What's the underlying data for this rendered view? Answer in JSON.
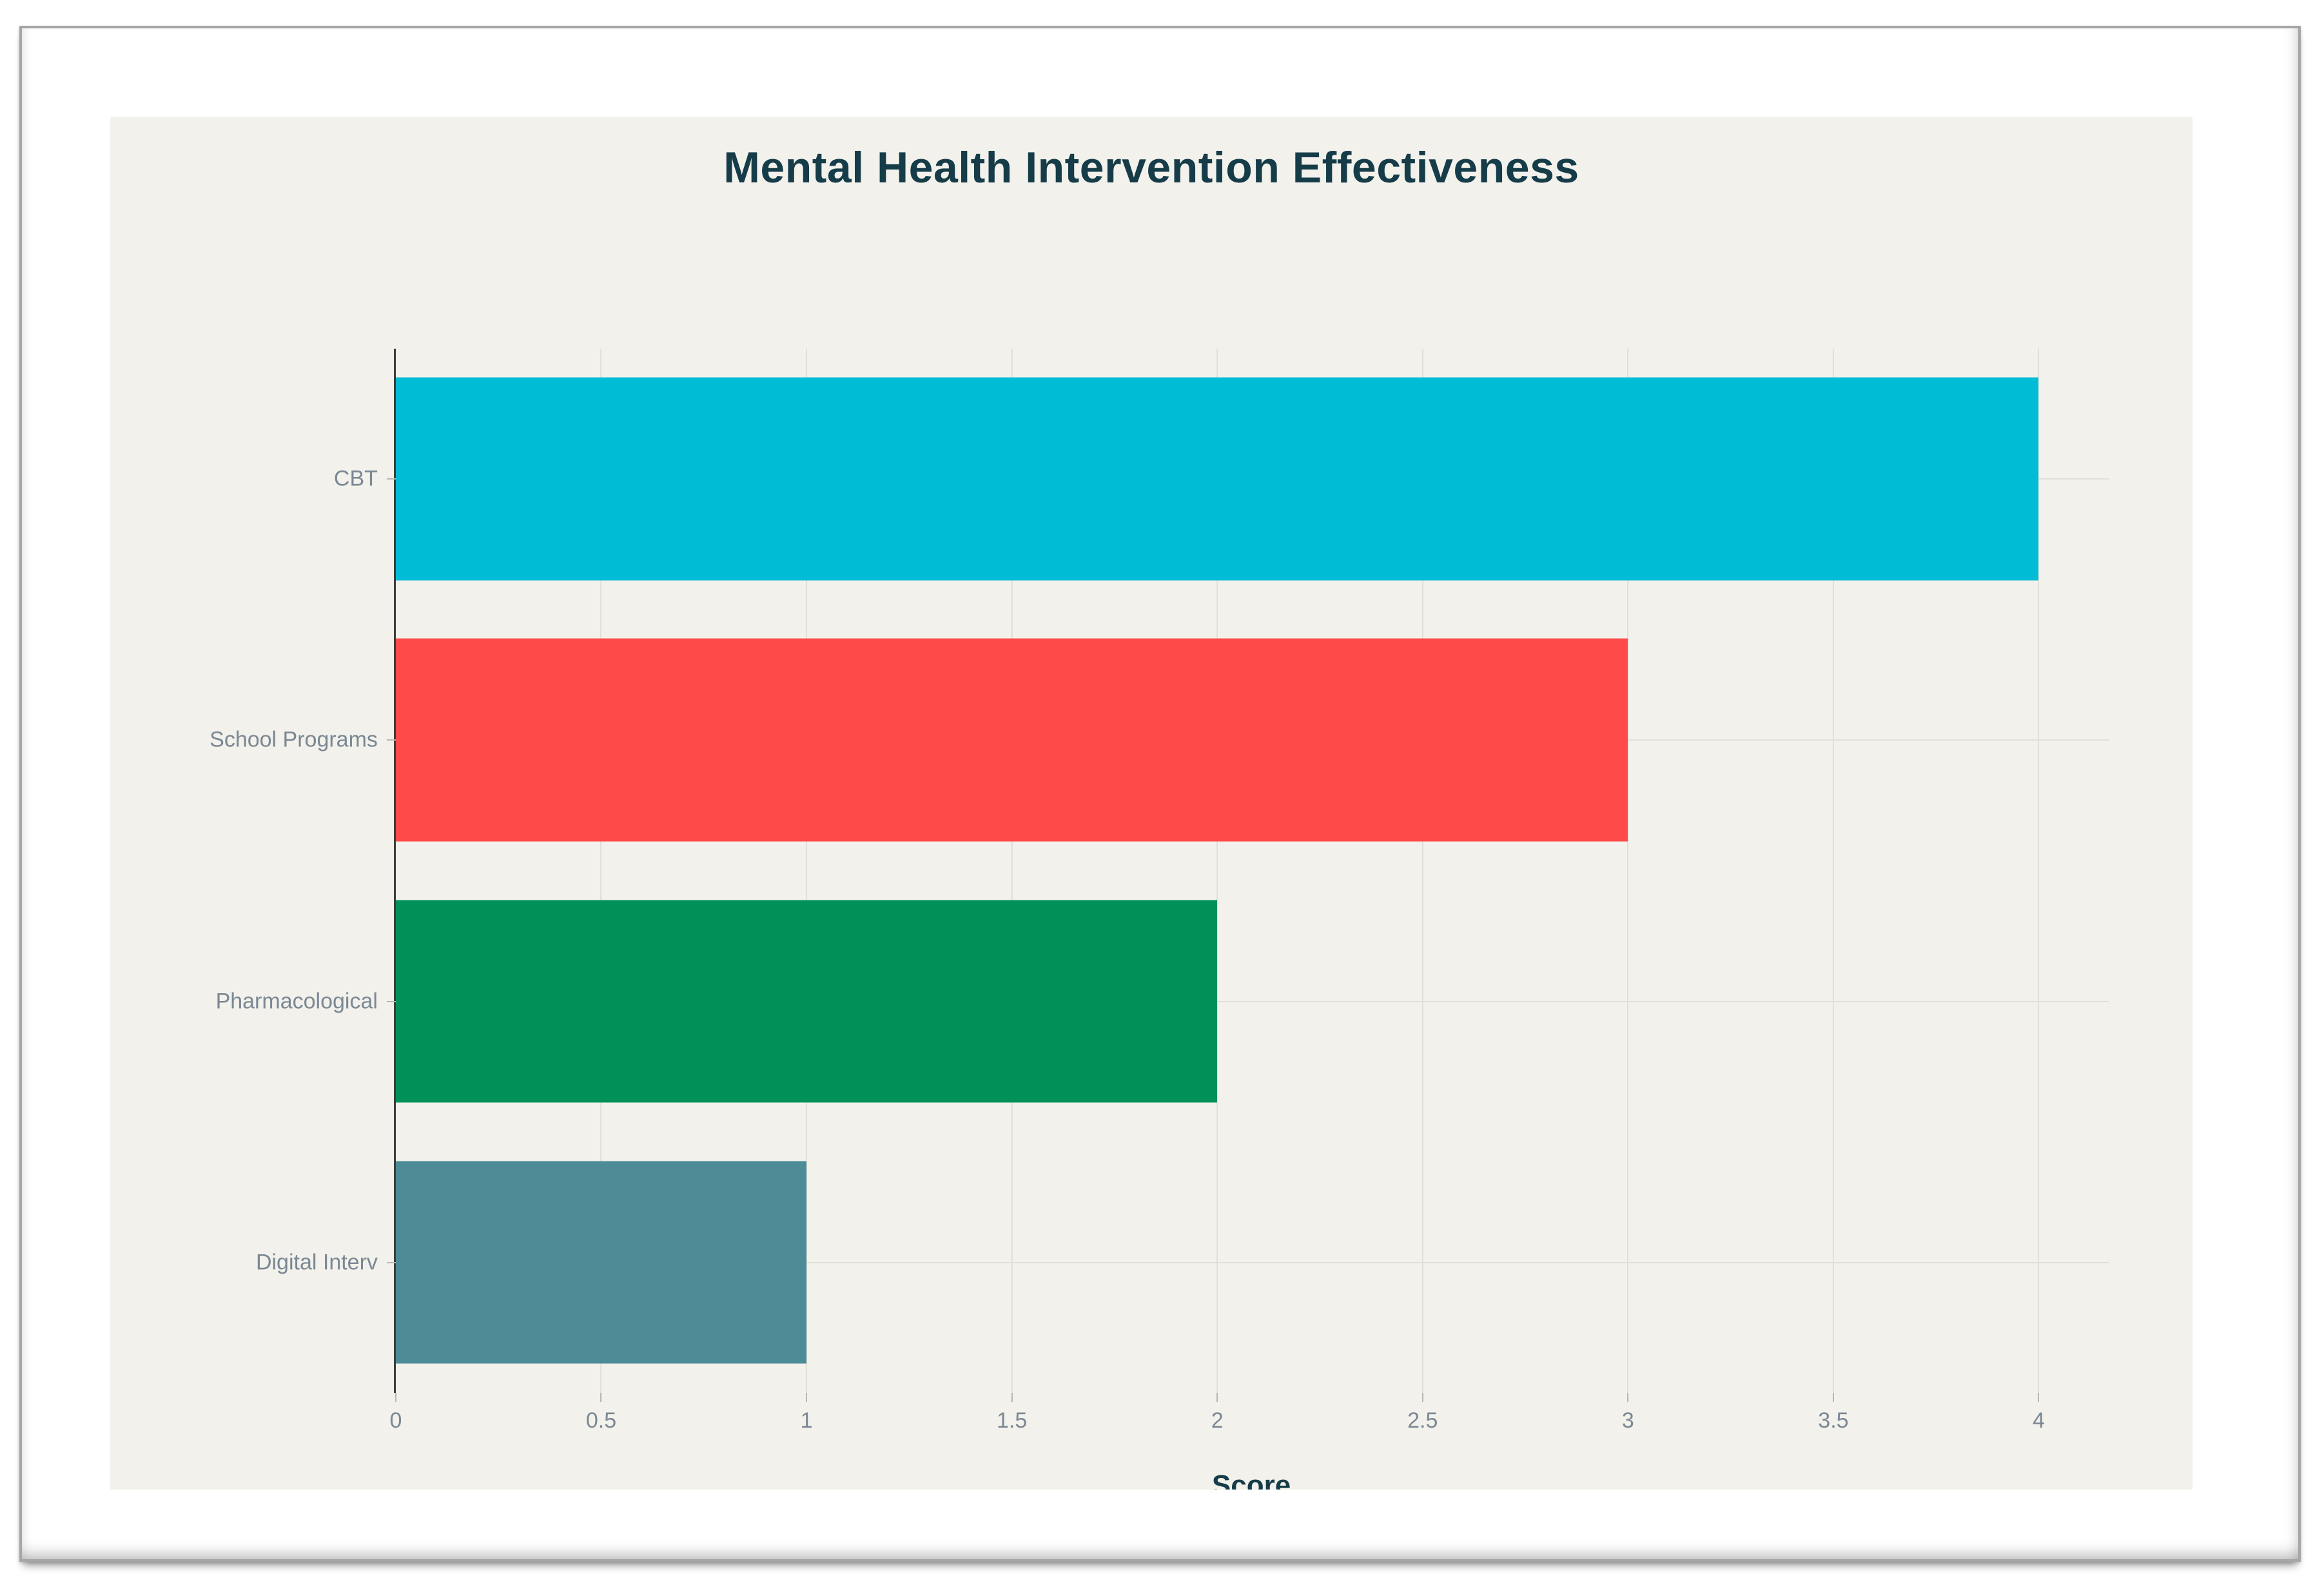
{
  "chart_data": {
    "type": "bar",
    "orientation": "horizontal",
    "title": "Mental Health Intervention Effectiveness",
    "categories": [
      "CBT",
      "School Programs",
      "Pharmacological",
      "Digital Interv"
    ],
    "values": [
      4,
      3,
      2,
      1
    ],
    "bar_colors": [
      "#00BCD5",
      "#FE4A49",
      "#009159",
      "#4D8C96"
    ],
    "xlabel": "Score",
    "ylabel": "",
    "x_ticks": [
      0,
      0.5,
      1,
      1.5,
      2,
      2.5,
      3,
      3.5,
      4
    ],
    "x_tick_labels": [
      "0",
      "0.5",
      "1",
      "1.5",
      "2",
      "2.5",
      "3",
      "3.5",
      "4"
    ],
    "xlim": [
      0,
      4.17
    ],
    "grid": true,
    "legend": false
  },
  "colors": {
    "page_bg": "#FFFFFF",
    "panel_bg": "#F2F1EB",
    "title_text": "#153C48",
    "axis_label_text": "#7B8894",
    "grid_line": "#E1E0D8",
    "axis_line": "#3B3B3B",
    "tick_mark": "#B7B6AF",
    "frame_border": "#A6A6A6"
  }
}
